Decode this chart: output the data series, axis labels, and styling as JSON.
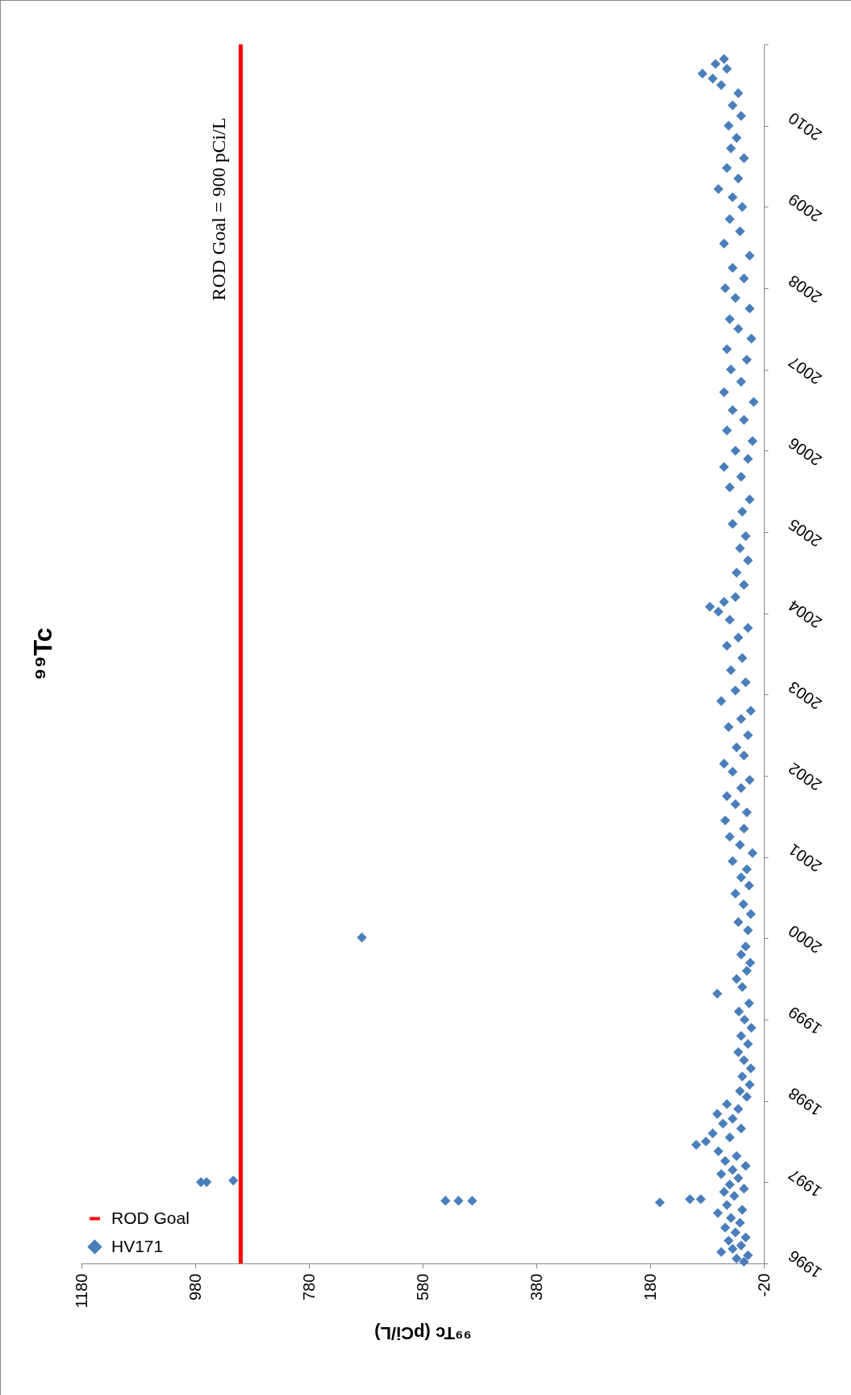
{
  "chart_data": {
    "type": "scatter",
    "title": "⁹⁹Tc",
    "xlabel": "⁹⁹Tc (pCi/L)",
    "ylim": [
      1996,
      2011
    ],
    "yticks": [
      1996,
      1997,
      1998,
      1999,
      2000,
      2001,
      2002,
      2003,
      2004,
      2005,
      2006,
      2007,
      2008,
      2009,
      2010,
      {
        "value": 2011,
        "label": null
      }
    ],
    "xlim": [
      1180,
      -20
    ],
    "xticks": [
      -20,
      180,
      380,
      580,
      780,
      980,
      1180
    ],
    "grid": false,
    "legend": "bottom left",
    "marker": "diamond",
    "annotations": [
      {
        "text": "ROD Goal = 900 pCi/L",
        "x": 900,
        "y": 2010.1
      }
    ],
    "series": [
      {
        "name": "HV171",
        "color": "#4a7ebb",
        "values": [
          1996.02,
          1996.06,
          1996.1,
          1996.14,
          1996.18,
          1996.22,
          1996.28,
          1996.32,
          1996.38,
          1996.44,
          1996.5,
          1996.56,
          1996.62,
          1996.66,
          1996.72,
          1996.77,
          1996.77,
          1996.77,
          1996.75,
          1996.79,
          1996.79,
          1996.83,
          1996.88,
          1996.92,
          1996.97,
          1997.0,
          1997.0,
          1997.02,
          1997.05,
          1997.1,
          1997.15,
          1997.2,
          1997.26,
          1997.32,
          1997.38,
          1997.46,
          1997.5,
          1997.55,
          1997.6,
          1997.66,
          1997.72,
          1997.78,
          1997.84,
          1997.9,
          1997.96,
          1998.05,
          1998.12,
          1998.2,
          1998.3,
          1998.4,
          1998.5,
          1998.6,
          1998.7,
          1998.8,
          1998.9,
          1999.0,
          1999.1,
          1999.2,
          1999.32,
          1999.4,
          1999.5,
          1999.6,
          1999.7,
          1999.8,
          1999.9,
          2000.01,
          2000.1,
          2000.2,
          2000.3,
          2000.42,
          2000.55,
          2000.65,
          2000.75,
          2000.85,
          2000.95,
          2001.05,
          2001.15,
          2001.25,
          2001.35,
          2001.45,
          2001.55,
          2001.65,
          2001.75,
          2001.85,
          2001.95,
          2002.05,
          2002.15,
          2002.25,
          2002.35,
          2002.5,
          2002.6,
          2002.7,
          2002.8,
          2002.92,
          2003.05,
          2003.15,
          2003.3,
          2003.45,
          2003.6,
          2003.7,
          2003.82,
          2003.92,
          2004.02,
          2004.08,
          2004.14,
          2004.2,
          2004.35,
          2004.5,
          2004.65,
          2004.8,
          2004.95,
          2005.1,
          2005.25,
          2005.4,
          2005.55,
          2005.68,
          2005.8,
          2005.9,
          2006.0,
          2006.12,
          2006.25,
          2006.38,
          2006.5,
          2006.6,
          2006.72,
          2006.85,
          2007.0,
          2007.12,
          2007.25,
          2007.38,
          2007.5,
          2007.62,
          2007.75,
          2007.88,
          2008.0,
          2008.12,
          2008.25,
          2008.4,
          2008.55,
          2008.7,
          2008.85,
          2009.0,
          2009.12,
          2009.22,
          2009.35,
          2009.48,
          2009.6,
          2009.72,
          2009.85,
          2010.0,
          2010.12,
          2010.25,
          2010.4,
          2010.5,
          2010.58,
          2010.64,
          2010.7,
          2010.76,
          2010.82
        ],
        "x": [
          15,
          28,
          8,
          55,
          35,
          20,
          42,
          12,
          30,
          48,
          22,
          38,
          61,
          18,
          45,
          540,
          517,
          493,
          163,
          110,
          91,
          32,
          50,
          15,
          40,
          970,
          960,
          913,
          25,
          55,
          35,
          12,
          48,
          28,
          60,
          99,
          82,
          40,
          70,
          20,
          52,
          35,
          62,
          25,
          45,
          10,
          22,
          5,
          18,
          3,
          15,
          25,
          8,
          20,
          2,
          14,
          24,
          6,
          62,
          18,
          28,
          10,
          4,
          20,
          12,
          687,
          8,
          25,
          3,
          16,
          30,
          6,
          20,
          10,
          35,
          0,
          22,
          40,
          15,
          48,
          10,
          30,
          45,
          20,
          5,
          35,
          50,
          15,
          28,
          8,
          42,
          20,
          3,
          55,
          30,
          12,
          38,
          18,
          45,
          25,
          8,
          40,
          60,
          75,
          50,
          30,
          15,
          28,
          8,
          22,
          12,
          35,
          18,
          5,
          40,
          20,
          50,
          8,
          30,
          0,
          45,
          15,
          35,
          -2,
          50,
          20,
          38,
          10,
          45,
          2,
          25,
          40,
          5,
          30,
          48,
          15,
          35,
          5,
          50,
          22,
          40,
          18,
          35,
          60,
          25,
          45,
          15,
          38,
          28,
          42,
          20,
          35,
          25,
          55,
          70,
          88,
          45,
          65,
          50
        ]
      },
      {
        "name": "ROD Goal",
        "type": "line",
        "color": "#ff0000",
        "line_style": "solid",
        "marker": "none",
        "x": [
          900,
          900
        ],
        "values": [
          1996,
          2011
        ]
      }
    ]
  }
}
